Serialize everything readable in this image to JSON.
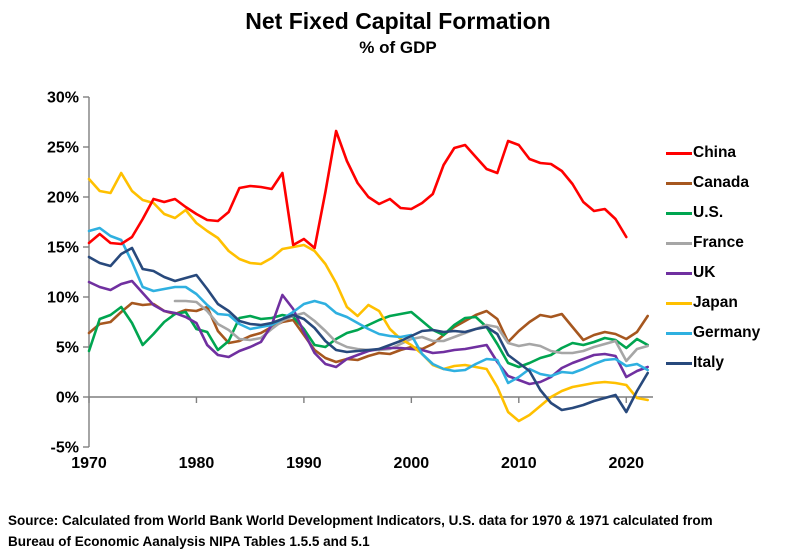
{
  "chart_data": {
    "type": "line",
    "title": "Net Fixed Capital Formation",
    "subtitle": "% of GDP",
    "xlabel": "",
    "ylabel": "",
    "ylim": [
      -5,
      30
    ],
    "xlim": [
      1970,
      2022
    ],
    "grid": false,
    "zero_axis": true,
    "legend_position": "right",
    "yticks": [
      30,
      25,
      20,
      15,
      10,
      5,
      0,
      -5
    ],
    "ytick_suffix": "%",
    "xticks": [
      1970,
      1980,
      1990,
      2000,
      2010,
      2020
    ],
    "series": [
      {
        "name": "China",
        "color": "#FF0000",
        "start_year": 1970,
        "z_top": true,
        "values": [
          15.4,
          16.3,
          15.4,
          15.3,
          16.0,
          17.8,
          19.8,
          19.5,
          19.8,
          19.0,
          18.3,
          17.7,
          17.6,
          18.5,
          20.9,
          21.1,
          21.0,
          20.8,
          22.4,
          15.2,
          15.8,
          14.9,
          20.5,
          26.6,
          23.6,
          21.4,
          20.0,
          19.3,
          19.8,
          18.9,
          18.8,
          19.4,
          20.3,
          23.2,
          24.9,
          25.2,
          24.0,
          22.8,
          22.4,
          25.6,
          25.2,
          23.8,
          23.4,
          23.3,
          22.6,
          21.3,
          19.5,
          18.6,
          18.8,
          17.8,
          16.0
        ]
      },
      {
        "name": "Canada",
        "color": "#A6571F",
        "start_year": 1970,
        "z_top": false,
        "values": [
          6.4,
          7.3,
          7.5,
          8.5,
          9.4,
          9.2,
          9.3,
          8.6,
          8.3,
          8.7,
          8.6,
          9.0,
          6.6,
          5.4,
          5.6,
          6.1,
          6.4,
          7.0,
          7.5,
          7.7,
          6.2,
          4.7,
          3.9,
          3.5,
          3.8,
          3.7,
          4.1,
          4.4,
          4.3,
          4.7,
          5.0,
          4.8,
          5.3,
          6.2,
          7.0,
          7.6,
          8.2,
          8.6,
          7.8,
          5.5,
          6.6,
          7.5,
          8.2,
          8.0,
          8.3,
          7.0,
          5.7,
          6.2,
          6.5,
          6.3,
          5.8,
          6.5,
          8.1
        ]
      },
      {
        "name": "U.S.",
        "color": "#00A550",
        "start_year": 1970,
        "z_top": false,
        "values": [
          4.6,
          7.8,
          8.2,
          9.0,
          7.4,
          5.2,
          6.3,
          7.5,
          8.3,
          8.5,
          6.8,
          6.5,
          4.7,
          5.6,
          7.9,
          8.1,
          7.8,
          7.9,
          8.2,
          8.0,
          6.8,
          5.2,
          5.0,
          5.8,
          6.4,
          6.7,
          7.2,
          7.7,
          8.1,
          8.3,
          8.5,
          7.6,
          6.7,
          6.2,
          7.2,
          7.9,
          8.0,
          7.0,
          5.3,
          3.4,
          3.0,
          3.4,
          3.9,
          4.2,
          4.9,
          5.4,
          5.2,
          5.5,
          5.9,
          5.7,
          4.9,
          5.8,
          5.2
        ]
      },
      {
        "name": "France",
        "color": "#A6A6A6",
        "start_year": 1978,
        "z_top": false,
        "values": [
          9.6,
          9.6,
          9.5,
          8.6,
          7.3,
          6.7,
          5.8,
          5.7,
          5.9,
          6.8,
          7.6,
          8.1,
          8.4,
          7.6,
          6.6,
          5.5,
          5.0,
          4.8,
          4.7,
          4.7,
          4.8,
          5.3,
          5.8,
          6.0,
          5.6,
          5.6,
          6.0,
          6.4,
          6.8,
          7.2,
          7.0,
          5.4,
          5.1,
          5.3,
          5.1,
          4.6,
          4.4,
          4.4,
          4.6,
          5.0,
          5.3,
          5.6,
          3.6,
          4.8,
          5.1
        ]
      },
      {
        "name": "UK",
        "color": "#7030A0",
        "start_year": 1970,
        "z_top": false,
        "values": [
          11.5,
          11.0,
          10.7,
          11.3,
          11.6,
          10.4,
          9.2,
          8.6,
          8.4,
          8.0,
          7.4,
          5.2,
          4.2,
          4.0,
          4.6,
          5.0,
          5.5,
          7.2,
          10.2,
          8.8,
          6.5,
          4.4,
          3.3,
          3.0,
          3.8,
          4.2,
          4.6,
          4.8,
          4.9,
          4.9,
          4.8,
          4.7,
          4.4,
          4.5,
          4.7,
          4.8,
          5.0,
          5.2,
          3.5,
          2.1,
          1.7,
          1.3,
          1.5,
          2.0,
          2.9,
          3.4,
          3.8,
          4.2,
          4.3,
          4.1,
          2.0,
          2.6,
          3.0
        ]
      },
      {
        "name": "Japan",
        "color": "#FFC000",
        "start_year": 1970,
        "z_top": false,
        "values": [
          21.8,
          20.6,
          20.4,
          22.4,
          20.6,
          19.7,
          19.4,
          18.3,
          17.9,
          18.7,
          17.4,
          16.6,
          15.9,
          14.6,
          13.8,
          13.4,
          13.3,
          13.9,
          14.8,
          15.0,
          15.2,
          14.6,
          13.3,
          11.4,
          9.0,
          8.1,
          9.2,
          8.6,
          6.8,
          5.8,
          5.2,
          4.3,
          3.2,
          2.8,
          3.1,
          3.2,
          3.0,
          2.8,
          1.0,
          -1.5,
          -2.4,
          -1.8,
          -0.9,
          0.0,
          0.6,
          1.0,
          1.2,
          1.4,
          1.5,
          1.4,
          1.2,
          -0.1,
          -0.3
        ]
      },
      {
        "name": "Germany",
        "color": "#2FB0E0",
        "start_year": 1970,
        "z_top": false,
        "values": [
          16.6,
          16.9,
          16.1,
          15.7,
          13.5,
          11.0,
          10.6,
          10.8,
          11.0,
          11.0,
          10.3,
          9.2,
          8.3,
          8.2,
          7.3,
          6.8,
          7.0,
          7.2,
          7.8,
          8.5,
          9.3,
          9.6,
          9.3,
          8.4,
          8.0,
          7.4,
          6.8,
          6.3,
          6.1,
          6.0,
          6.2,
          4.3,
          3.3,
          2.8,
          2.6,
          2.7,
          3.3,
          3.8,
          3.7,
          1.4,
          2.0,
          2.8,
          2.3,
          2.1,
          2.5,
          2.4,
          2.8,
          3.3,
          3.7,
          3.8,
          3.1,
          3.3,
          2.7
        ]
      },
      {
        "name": "Italy",
        "color": "#28497C",
        "start_year": 1970,
        "z_top": false,
        "values": [
          14.0,
          13.4,
          13.1,
          14.3,
          14.9,
          12.8,
          12.6,
          12.0,
          11.6,
          11.9,
          12.2,
          10.8,
          9.3,
          8.6,
          7.6,
          7.3,
          7.2,
          7.4,
          7.8,
          8.2,
          7.8,
          6.9,
          5.6,
          4.7,
          4.5,
          4.6,
          4.7,
          4.8,
          5.2,
          5.6,
          6.1,
          6.6,
          6.7,
          6.5,
          6.6,
          6.5,
          6.8,
          7.0,
          6.3,
          4.2,
          3.4,
          2.6,
          0.7,
          -0.6,
          -1.3,
          -1.1,
          -0.8,
          -0.4,
          -0.1,
          0.2,
          -1.5,
          0.6,
          2.4
        ]
      }
    ]
  },
  "source": {
    "line1": "Source:  Calculated from World Bank World Development Indicators, U.S. data for 1970 & 1971 calculated from",
    "line2": "Bureau of Economic Aanalysis NIPA Tables 1.5.5 and 5.1"
  }
}
